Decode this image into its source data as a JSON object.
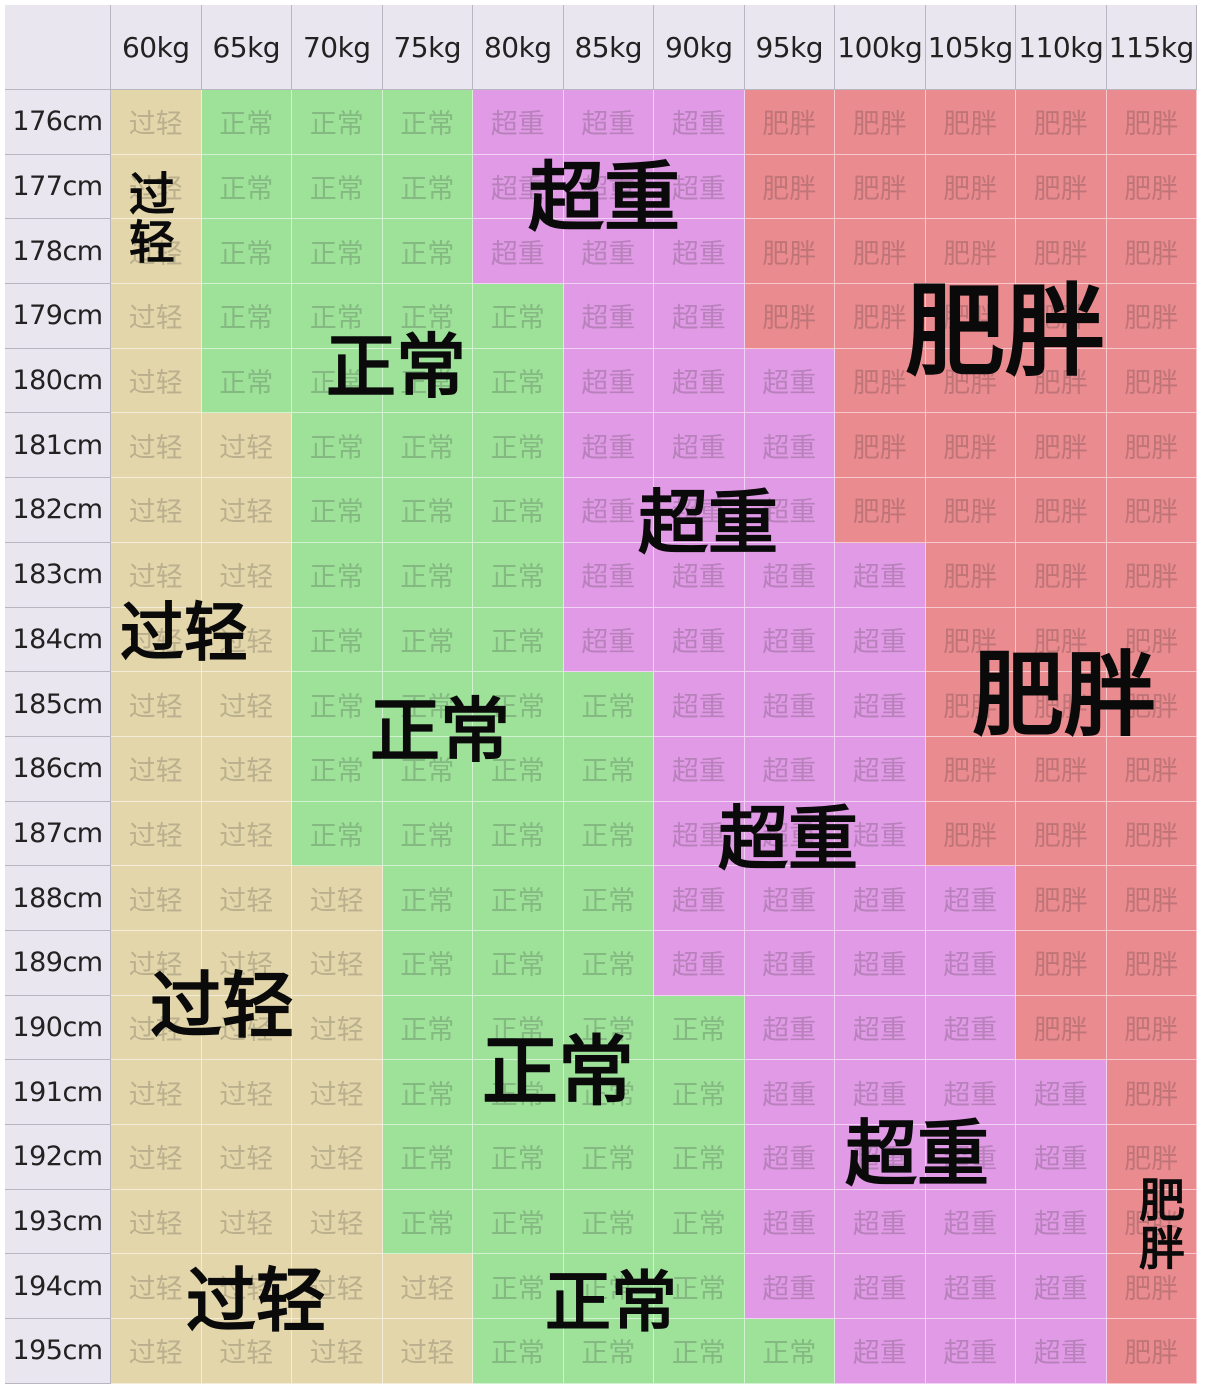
{
  "chart_data": {
    "type": "table",
    "categories_labels": {
      "underweight": "过轻",
      "normal": "正常",
      "overweight": "超重",
      "obese": "肥胖"
    },
    "columns": [
      "60kg",
      "65kg",
      "70kg",
      "75kg",
      "80kg",
      "85kg",
      "90kg",
      "95kg",
      "100kg",
      "105kg",
      "110kg",
      "115kg"
    ],
    "rows": [
      {
        "height": "176cm",
        "cells": [
          "过轻",
          "正常",
          "正常",
          "正常",
          "超重",
          "超重",
          "超重",
          "肥胖",
          "肥胖",
          "肥胖",
          "肥胖",
          "肥胖"
        ]
      },
      {
        "height": "177cm",
        "cells": [
          "过轻",
          "正常",
          "正常",
          "正常",
          "超重",
          "超重",
          "超重",
          "肥胖",
          "肥胖",
          "肥胖",
          "肥胖",
          "肥胖"
        ]
      },
      {
        "height": "178cm",
        "cells": [
          "过轻",
          "正常",
          "正常",
          "正常",
          "超重",
          "超重",
          "超重",
          "肥胖",
          "肥胖",
          "肥胖",
          "肥胖",
          "肥胖"
        ]
      },
      {
        "height": "179cm",
        "cells": [
          "过轻",
          "正常",
          "正常",
          "正常",
          "正常",
          "超重",
          "超重",
          "肥胖",
          "肥胖",
          "肥胖",
          "肥胖",
          "肥胖"
        ]
      },
      {
        "height": "180cm",
        "cells": [
          "过轻",
          "正常",
          "正常",
          "正常",
          "正常",
          "超重",
          "超重",
          "超重",
          "肥胖",
          "肥胖",
          "肥胖",
          "肥胖"
        ]
      },
      {
        "height": "181cm",
        "cells": [
          "过轻",
          "过轻",
          "正常",
          "正常",
          "正常",
          "超重",
          "超重",
          "超重",
          "肥胖",
          "肥胖",
          "肥胖",
          "肥胖"
        ]
      },
      {
        "height": "182cm",
        "cells": [
          "过轻",
          "过轻",
          "正常",
          "正常",
          "正常",
          "超重",
          "超重",
          "超重",
          "肥胖",
          "肥胖",
          "肥胖",
          "肥胖"
        ]
      },
      {
        "height": "183cm",
        "cells": [
          "过轻",
          "过轻",
          "正常",
          "正常",
          "正常",
          "超重",
          "超重",
          "超重",
          "超重",
          "肥胖",
          "肥胖",
          "肥胖"
        ]
      },
      {
        "height": "184cm",
        "cells": [
          "过轻",
          "过轻",
          "正常",
          "正常",
          "正常",
          "超重",
          "超重",
          "超重",
          "超重",
          "肥胖",
          "肥胖",
          "肥胖"
        ]
      },
      {
        "height": "185cm",
        "cells": [
          "过轻",
          "过轻",
          "正常",
          "正常",
          "正常",
          "正常",
          "超重",
          "超重",
          "超重",
          "肥胖",
          "肥胖",
          "肥胖"
        ]
      },
      {
        "height": "186cm",
        "cells": [
          "过轻",
          "过轻",
          "正常",
          "正常",
          "正常",
          "正常",
          "超重",
          "超重",
          "超重",
          "肥胖",
          "肥胖",
          "肥胖"
        ]
      },
      {
        "height": "187cm",
        "cells": [
          "过轻",
          "过轻",
          "正常",
          "正常",
          "正常",
          "正常",
          "超重",
          "超重",
          "超重",
          "肥胖",
          "肥胖",
          "肥胖"
        ]
      },
      {
        "height": "188cm",
        "cells": [
          "过轻",
          "过轻",
          "过轻",
          "正常",
          "正常",
          "正常",
          "超重",
          "超重",
          "超重",
          "超重",
          "肥胖",
          "肥胖"
        ]
      },
      {
        "height": "189cm",
        "cells": [
          "过轻",
          "过轻",
          "过轻",
          "正常",
          "正常",
          "正常",
          "超重",
          "超重",
          "超重",
          "超重",
          "肥胖",
          "肥胖"
        ]
      },
      {
        "height": "190cm",
        "cells": [
          "过轻",
          "过轻",
          "过轻",
          "正常",
          "正常",
          "正常",
          "正常",
          "超重",
          "超重",
          "超重",
          "肥胖",
          "肥胖"
        ]
      },
      {
        "height": "191cm",
        "cells": [
          "过轻",
          "过轻",
          "过轻",
          "正常",
          "正常",
          "正常",
          "正常",
          "超重",
          "超重",
          "超重",
          "超重",
          "肥胖"
        ]
      },
      {
        "height": "192cm",
        "cells": [
          "过轻",
          "过轻",
          "过轻",
          "正常",
          "正常",
          "正常",
          "正常",
          "超重",
          "超重",
          "超重",
          "超重",
          "肥胖"
        ]
      },
      {
        "height": "193cm",
        "cells": [
          "过轻",
          "过轻",
          "过轻",
          "正常",
          "正常",
          "正常",
          "正常",
          "超重",
          "超重",
          "超重",
          "超重",
          "肥胖"
        ]
      },
      {
        "height": "194cm",
        "cells": [
          "过轻",
          "过轻",
          "过轻",
          "过轻",
          "正常",
          "正常",
          "正常",
          "超重",
          "超重",
          "超重",
          "超重",
          "肥胖"
        ]
      },
      {
        "height": "195cm",
        "cells": [
          "过轻",
          "过轻",
          "过轻",
          "过轻",
          "正常",
          "正常",
          "正常",
          "正常",
          "超重",
          "超重",
          "超重",
          "肥胖"
        ]
      }
    ],
    "overlay_labels": [
      {
        "text": "过轻",
        "vertical": true
      },
      {
        "text": "超重"
      },
      {
        "text": "正常"
      },
      {
        "text": "肥胖"
      },
      {
        "text": "超重"
      },
      {
        "text": "过轻"
      },
      {
        "text": "正常"
      },
      {
        "text": "肥胖"
      },
      {
        "text": "超重"
      },
      {
        "text": "过轻"
      },
      {
        "text": "正常"
      },
      {
        "text": "超重"
      },
      {
        "text": "过轻"
      },
      {
        "text": "正常"
      },
      {
        "text": "肥胖",
        "vertical": true
      }
    ]
  },
  "colors": {
    "过轻": "#e3d6aa",
    "正常": "#9ee29a",
    "超重": "#e19ae6",
    "肥胖": "#ea8b8f",
    "header": "#e9e6ef"
  }
}
